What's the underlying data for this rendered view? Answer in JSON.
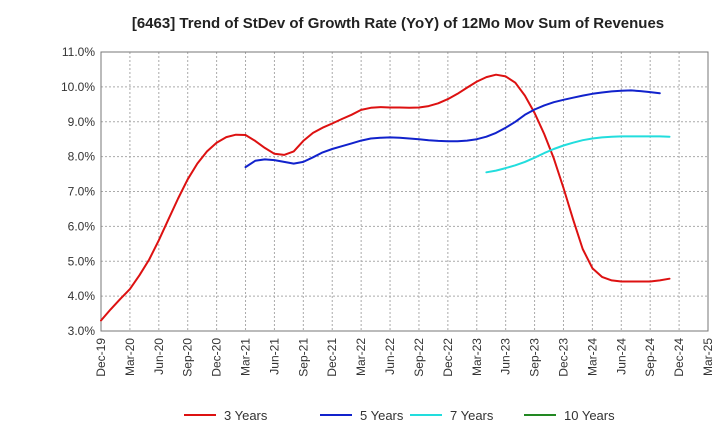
{
  "chart_data": {
    "type": "line",
    "title": "[6463]  Trend of StDev of Growth Rate (YoY) of 12Mo Mov Sum of Revenues",
    "xlabel": "",
    "ylabel": "",
    "ylim": [
      3.0,
      11.0
    ],
    "y_ticks": [
      "3.0%",
      "4.0%",
      "5.0%",
      "6.0%",
      "7.0%",
      "8.0%",
      "9.0%",
      "10.0%",
      "11.0%"
    ],
    "x_ticks": [
      "Dec-19",
      "Mar-20",
      "Jun-20",
      "Sep-20",
      "Dec-20",
      "Mar-21",
      "Jun-21",
      "Sep-21",
      "Dec-21",
      "Mar-22",
      "Jun-22",
      "Sep-22",
      "Dec-22",
      "Mar-23",
      "Jun-23",
      "Sep-23",
      "Dec-23",
      "Mar-24",
      "Jun-24",
      "Sep-24",
      "Dec-24",
      "Mar-25"
    ],
    "grid": true,
    "legend_position": "bottom",
    "series": [
      {
        "name": "3 Years",
        "color": "#dd1111",
        "start_index": 0,
        "values": [
          3.3,
          3.62,
          3.92,
          4.2,
          4.6,
          5.05,
          5.6,
          6.2,
          6.8,
          7.35,
          7.8,
          8.15,
          8.4,
          8.56,
          8.63,
          8.62,
          8.45,
          8.25,
          8.08,
          8.05,
          8.15,
          8.45,
          8.68,
          8.83,
          8.95,
          9.08,
          9.2,
          9.34,
          9.4,
          9.42,
          9.41,
          9.41,
          9.4,
          9.41,
          9.45,
          9.53,
          9.65,
          9.8,
          9.98,
          10.15,
          10.28,
          10.35,
          10.3,
          10.12,
          9.75,
          9.25,
          8.65,
          7.95,
          7.1,
          6.2,
          5.35,
          4.8,
          4.55,
          4.45,
          4.42,
          4.42,
          4.42,
          4.42,
          4.45,
          4.5
        ]
      },
      {
        "name": "5 Years",
        "color": "#1122cc",
        "start_index": 15,
        "values": [
          7.7,
          7.88,
          7.92,
          7.9,
          7.85,
          7.8,
          7.85,
          7.98,
          8.12,
          8.22,
          8.3,
          8.38,
          8.46,
          8.52,
          8.54,
          8.55,
          8.54,
          8.52,
          8.5,
          8.47,
          8.45,
          8.44,
          8.44,
          8.46,
          8.5,
          8.57,
          8.68,
          8.83,
          9.0,
          9.2,
          9.35,
          9.47,
          9.56,
          9.63,
          9.69,
          9.75,
          9.8,
          9.84,
          9.87,
          9.89,
          9.9,
          9.88,
          9.85,
          9.82
        ]
      },
      {
        "name": "7 Years",
        "color": "#22dddd",
        "start_index": 40,
        "values": [
          7.55,
          7.6,
          7.67,
          7.75,
          7.85,
          7.97,
          8.1,
          8.22,
          8.32,
          8.4,
          8.47,
          8.52,
          8.55,
          8.57,
          8.58,
          8.58,
          8.58,
          8.58,
          8.58,
          8.57
        ]
      },
      {
        "name": "10 Years",
        "color": "#228822",
        "start_index": 0,
        "values": []
      }
    ]
  }
}
